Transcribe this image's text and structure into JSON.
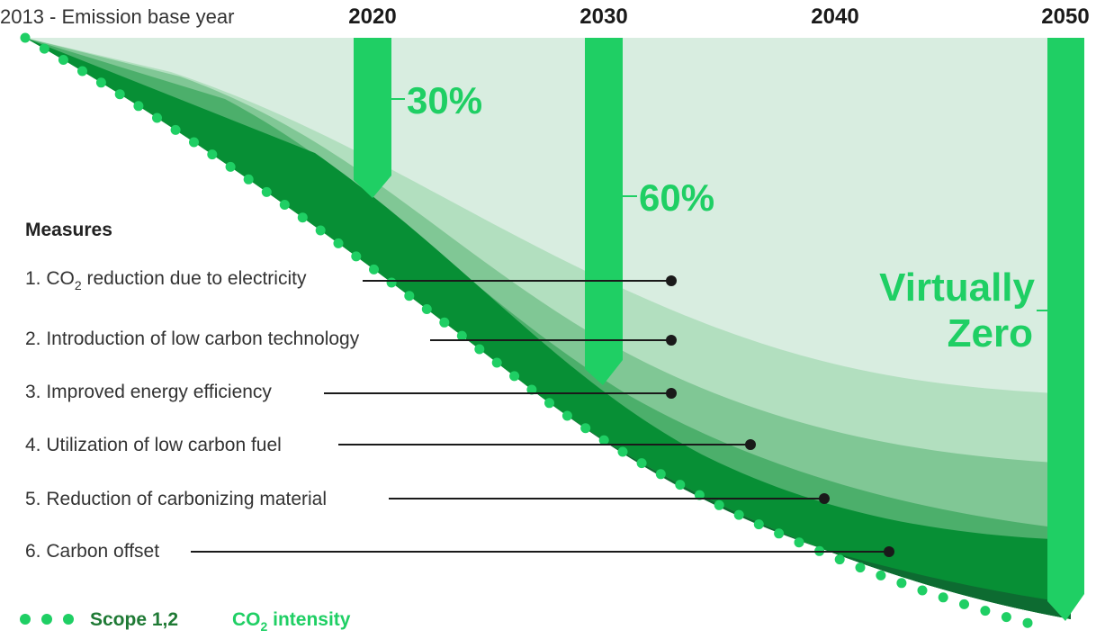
{
  "base_year_label": "2013 - Emission base year",
  "years": [
    "2020",
    "2030",
    "2040",
    "2050"
  ],
  "targets": [
    {
      "year": "2020",
      "label": "30%"
    },
    {
      "year": "2030",
      "label": "60%"
    },
    {
      "year": "2050",
      "label_line1": "Virtually",
      "label_line2": "Zero"
    }
  ],
  "measures_title": "Measures",
  "measures": [
    {
      "prefix": "1. CO",
      "sub": "2",
      "rest": " reduction due to electricity"
    },
    {
      "text": "2. Introduction of low carbon technology"
    },
    {
      "text": "3. Improved energy efficiency"
    },
    {
      "text": "4. Utilization of low carbon fuel"
    },
    {
      "text": "5. Reduction of carbonizing material"
    },
    {
      "text": "6. Carbon offset"
    }
  ],
  "legend": {
    "scope_label": "Scope 1,2",
    "co2_prefix": "CO",
    "co2_sub": "2",
    "co2_rest": " intensity"
  },
  "colors": {
    "band1": "#d8ede0",
    "band2": "#b2dfbf",
    "band3": "#80c795",
    "band4": "#4caf6b",
    "band5": "#078f35",
    "band6": "#0d6b31",
    "bar": "#1fcf64",
    "dots": "#1fcf64"
  }
}
